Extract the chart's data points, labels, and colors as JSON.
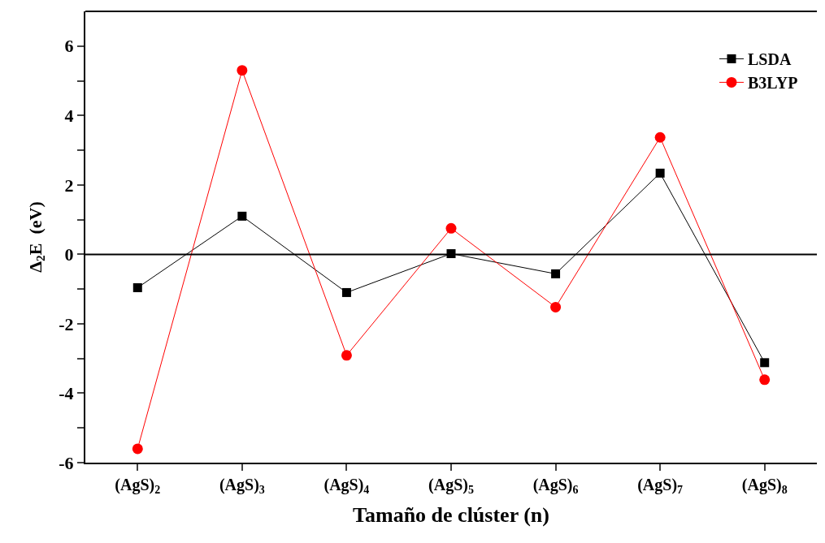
{
  "chart_data": {
    "type": "line",
    "xlabel": "Tamaño de clúster (n)",
    "ylabel": "Δ$_{2}$E  (eV)",
    "categories": [
      "(AgS)$_{2}$",
      "(AgS)$_{3}$",
      "(AgS)$_{4}$",
      "(AgS)$_{5}$",
      "(AgS)$_{6}$",
      "(AgS)$_{7}$",
      "(AgS)$_{8}$"
    ],
    "series": [
      {
        "name": "LSDA",
        "color": "#000000",
        "marker": "square",
        "values": [
          -0.96,
          1.1,
          -1.1,
          0.02,
          -0.56,
          2.34,
          -3.12
        ]
      },
      {
        "name": "B3LYP",
        "color": "#ff0000",
        "marker": "circle",
        "values": [
          -5.6,
          5.3,
          -2.91,
          0.75,
          -1.52,
          3.37,
          -3.61
        ]
      }
    ],
    "ylim": [
      -6,
      7
    ],
    "yticks": [
      -6,
      {
        "value": -5,
        "label": null
      },
      -4,
      {
        "value": -3,
        "label": null
      },
      -2,
      {
        "value": -1,
        "label": null
      },
      0,
      {
        "value": 1,
        "label": null
      },
      2,
      {
        "value": 3,
        "label": null
      },
      4,
      {
        "value": 5,
        "label": null
      },
      6
    ],
    "ref_lines": [
      {
        "axis": "y",
        "value": 0,
        "color": "#000000"
      }
    ],
    "legend": "top right",
    "line_style": "solid"
  }
}
